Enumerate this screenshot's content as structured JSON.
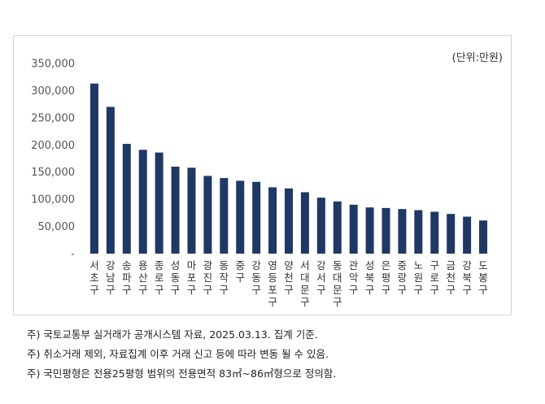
{
  "chart_data": {
    "type": "bar",
    "unit_label": "(단위:만원)",
    "categories": [
      "서초구",
      "강남구",
      "송파구",
      "용산구",
      "종로구",
      "성동구",
      "마포구",
      "광진구",
      "동작구",
      "중구",
      "강동구",
      "영등포구",
      "양천구",
      "서대문구",
      "강서구",
      "동대문구",
      "관악구",
      "성북구",
      "은평구",
      "중랑구",
      "노원구",
      "구로구",
      "금천구",
      "강북구",
      "도봉구"
    ],
    "values": [
      313000,
      270000,
      202000,
      191000,
      186000,
      160000,
      158000,
      143000,
      139000,
      134000,
      132000,
      122000,
      120000,
      113000,
      103000,
      96000,
      90000,
      85000,
      84000,
      82000,
      80000,
      77000,
      73000,
      68000,
      61000
    ],
    "y_ticks": [
      "-",
      "50,000",
      "100,000",
      "150,000",
      "200,000",
      "250,000",
      "300,000",
      "350,000"
    ],
    "ylim": [
      0,
      350000
    ],
    "bar_color": "#1f3864",
    "grid": false
  },
  "notes": [
    "주) 국토교통부 실거래가 공개시스템 자료, 2025.03.13. 집계 기준.",
    "주) 취소거래 제외, 자료집계 이후 거래 신고 등에 따라 변동 될 수 있음.",
    "주) 국민평형은 전용25평형 범위의 전용면적 83㎡~86㎡형으로 정의함."
  ]
}
